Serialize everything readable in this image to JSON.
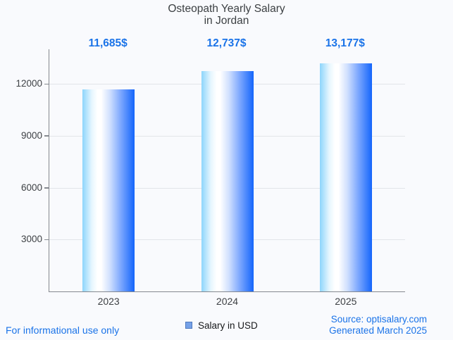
{
  "chart_data": {
    "type": "bar",
    "title": "Osteopath Yearly Salary",
    "subtitle": "in Jordan",
    "categories": [
      "2023",
      "2024",
      "2025"
    ],
    "values": [
      11685,
      12737,
      13177
    ],
    "value_labels": [
      "11,685$",
      "12,737$",
      "13,177$"
    ],
    "series_name": "Salary in USD",
    "xlabel": "",
    "ylabel": "",
    "ylim": [
      0,
      14000
    ],
    "yticks": [
      3000,
      6000,
      9000,
      12000
    ],
    "grid": true,
    "legend_position": "bottom",
    "bar_gradient": [
      "#8dd5fc",
      "#ffffff",
      "#1465fb"
    ]
  },
  "footer": {
    "disclaimer": "For informational use only",
    "source": "Source: optisalary.com",
    "generated": "Generated March 2025"
  },
  "colors": {
    "background": "#f9fafd",
    "accent_blue": "#1a73e8",
    "title_text": "#3c4043",
    "tick_text": "#3e4145",
    "axis_line": "#85898f",
    "gridline": "#e2e5e9",
    "bar_light": "#8dd5fc",
    "bar_white": "#ffffff",
    "bar_dark": "#1465fb",
    "legend_fill": "#76a1e8",
    "legend_border": "#4f79bd"
  }
}
